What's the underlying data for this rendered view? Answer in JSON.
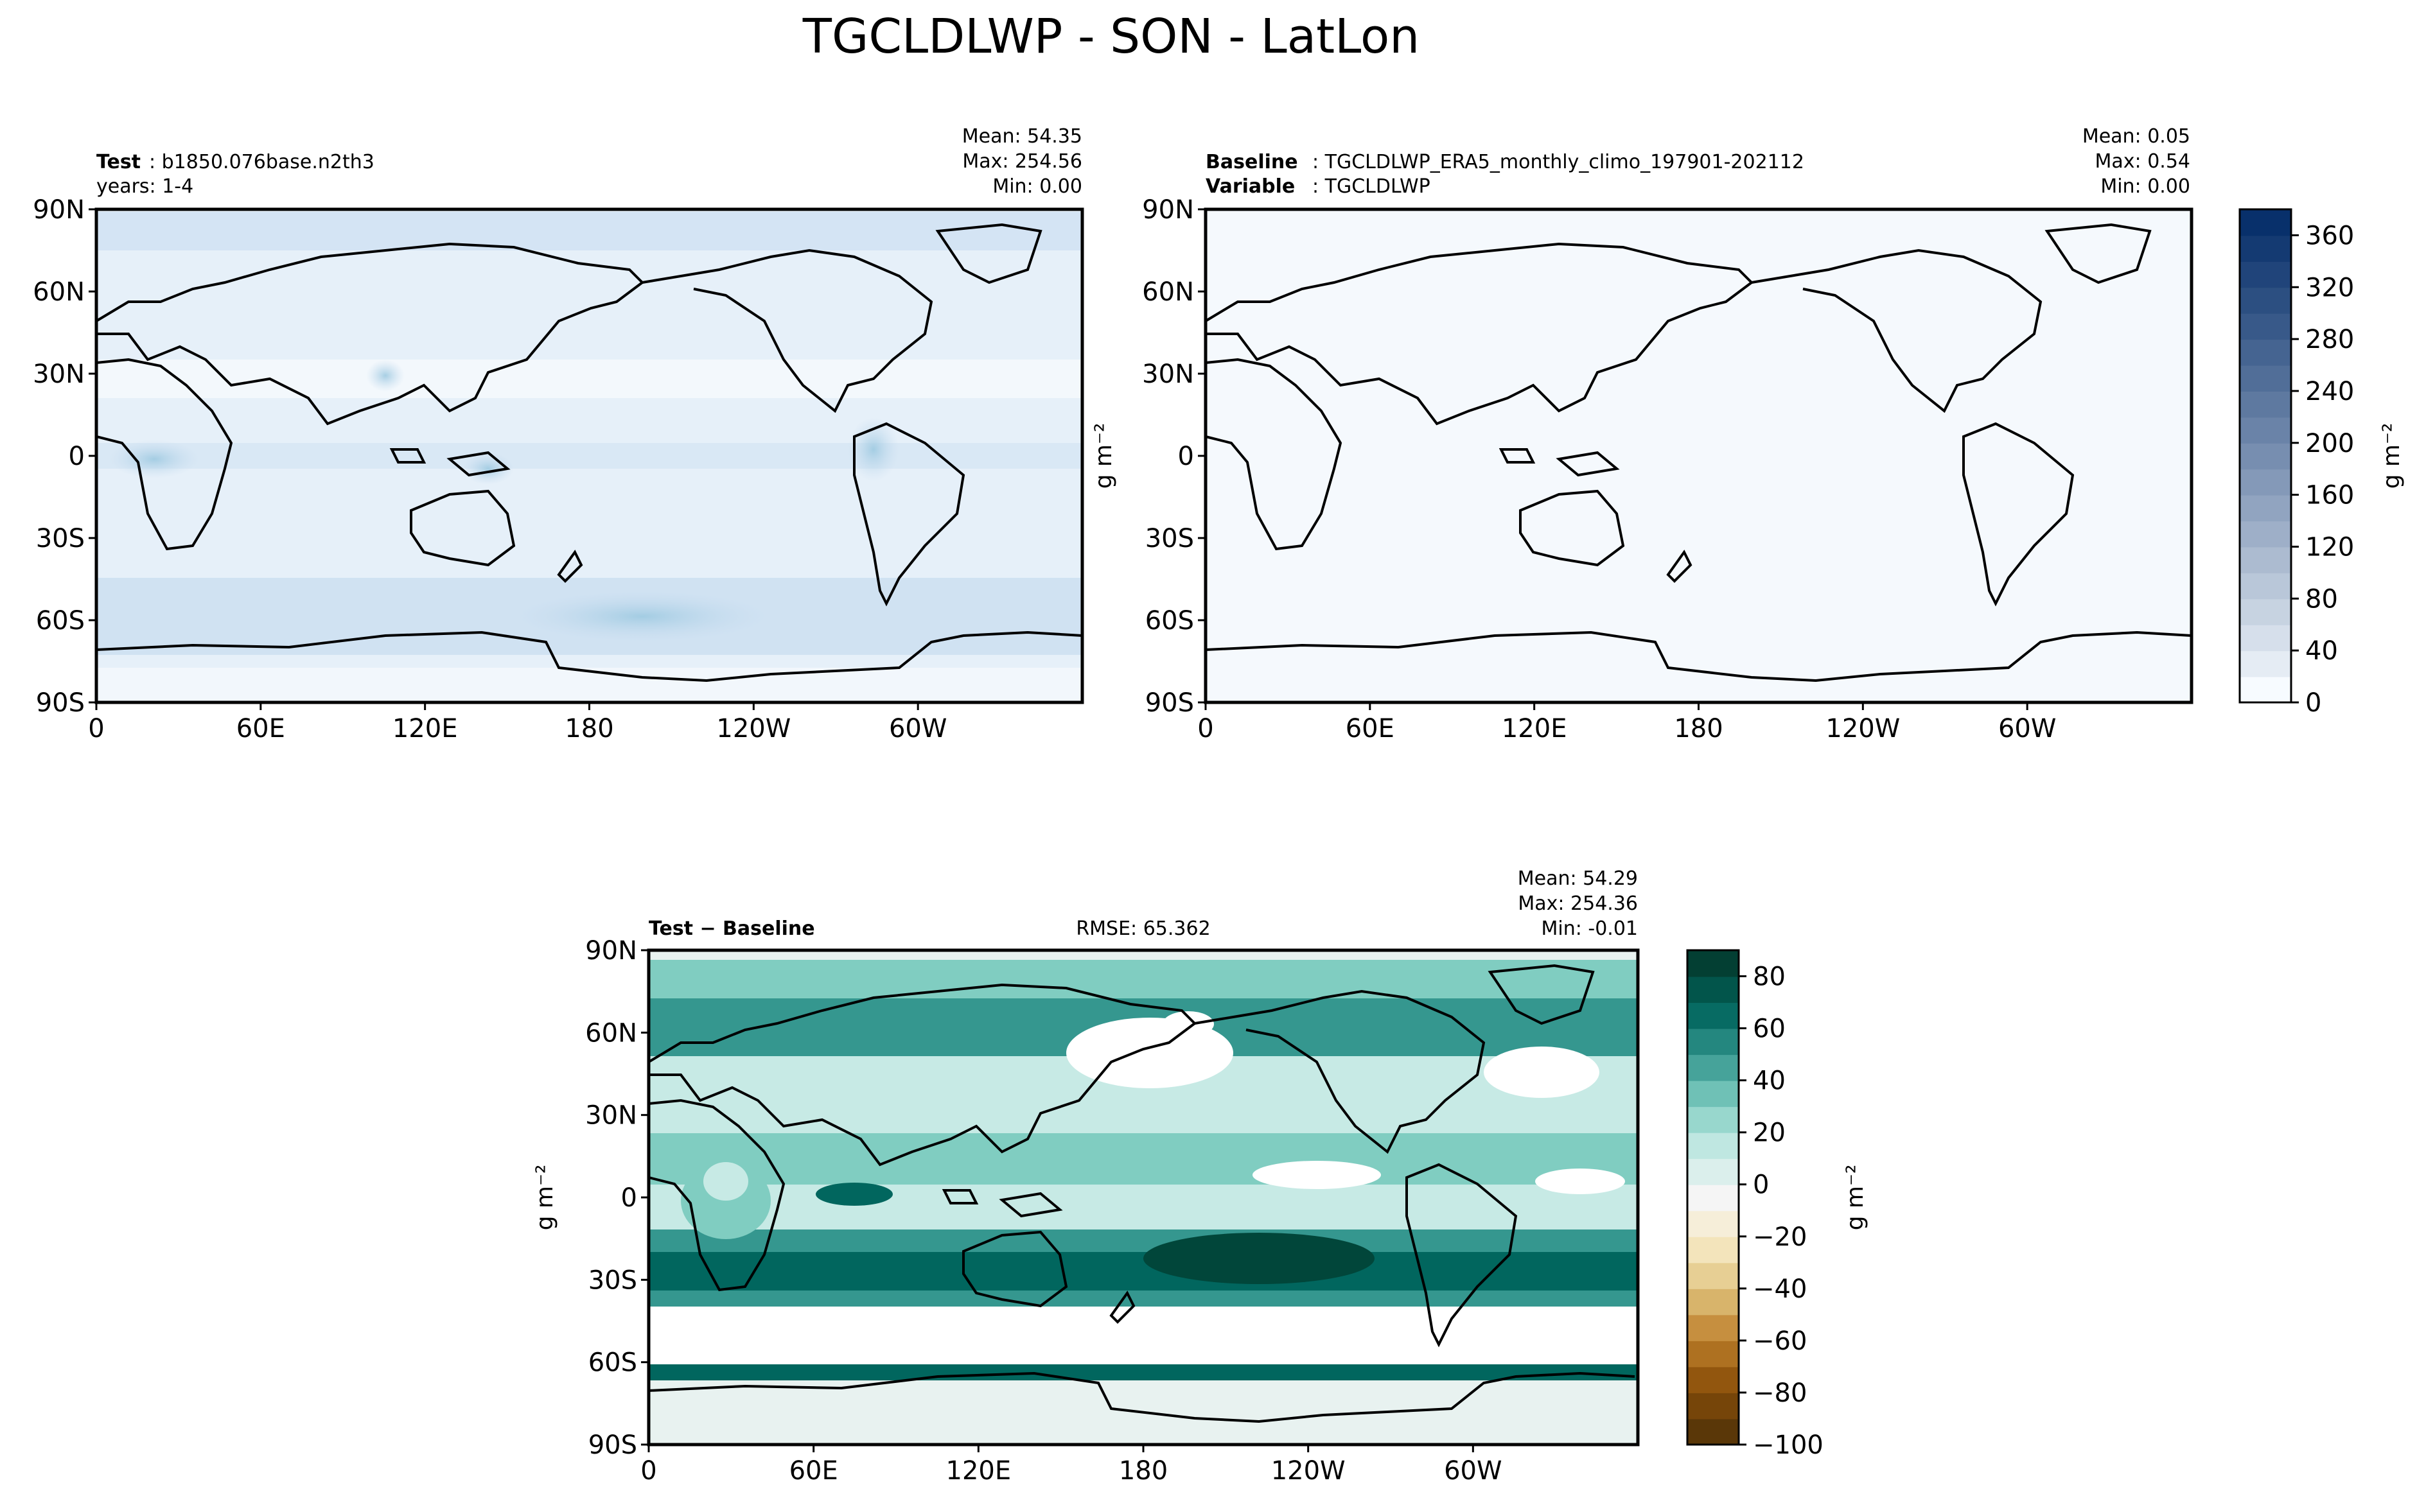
{
  "figure": {
    "title": "TGCLDLWP - SON - LatLon"
  },
  "panels": {
    "test": {
      "label_bold": "Test",
      "label_value": ": b1850.076base.n2th3",
      "years": "years: 1-4",
      "mean": "Mean: 54.35",
      "max": "Max: 254.56",
      "min": "Min:  0.00"
    },
    "baseline": {
      "label_bold": "Baseline",
      "label_value": ": TGCLDLWP_ERA5_monthly_climo_197901-202112",
      "variable_bold": "Variable",
      "variable_value": ": TGCLDLWP",
      "mean": "Mean:  0.05",
      "max": "Max:  0.54",
      "min": "Min:  0.00"
    },
    "diff": {
      "label": "Test − Baseline",
      "rmse": "RMSE: 65.362",
      "mean": "Mean: 54.29",
      "max": "Max: 254.36",
      "min": "Min: -0.01"
    }
  },
  "axes": {
    "lat_ticks": [
      "90N",
      "60N",
      "30N",
      "0",
      "30S",
      "60S",
      "90S"
    ],
    "lon_ticks": [
      "0",
      "60E",
      "120E",
      "180",
      "120W",
      "60W"
    ],
    "unit_label": "g m⁻²"
  },
  "colorbars": {
    "main": {
      "ticks": [
        "0",
        "40",
        "80",
        "120",
        "160",
        "200",
        "240",
        "280",
        "320",
        "360"
      ],
      "range": [
        0,
        380
      ],
      "colormap": "Blues",
      "low_color": "#f7fbff",
      "high_color": "#08306b"
    },
    "diff": {
      "ticks": [
        "80",
        "60",
        "40",
        "20",
        "0",
        "−20",
        "−40",
        "−60",
        "−80",
        "−100"
      ],
      "range": [
        -100,
        90
      ],
      "colormap": "BrBG",
      "low_color": "#5a3708",
      "high_color": "#033f33"
    }
  },
  "chart_data": [
    {
      "type": "heatmap",
      "panel": "test",
      "variable": "TGCLDLWP",
      "units": "g m⁻²",
      "xlim": [
        0,
        360
      ],
      "ylim": [
        -90,
        90
      ],
      "stats": {
        "mean": 54.35,
        "max": 254.56,
        "min": 0.0
      }
    },
    {
      "type": "heatmap",
      "panel": "baseline",
      "variable": "TGCLDLWP",
      "units": "g m⁻²",
      "xlim": [
        0,
        360
      ],
      "ylim": [
        -90,
        90
      ],
      "stats": {
        "mean": 0.05,
        "max": 0.54,
        "min": 0.0
      }
    },
    {
      "type": "heatmap",
      "panel": "diff",
      "variable": "TGCLDLWP",
      "units": "g m⁻²",
      "xlim": [
        0,
        360
      ],
      "ylim": [
        -90,
        90
      ],
      "stats": {
        "mean": 54.29,
        "max": 254.36,
        "min": -0.01,
        "rmse": 65.362
      }
    }
  ]
}
